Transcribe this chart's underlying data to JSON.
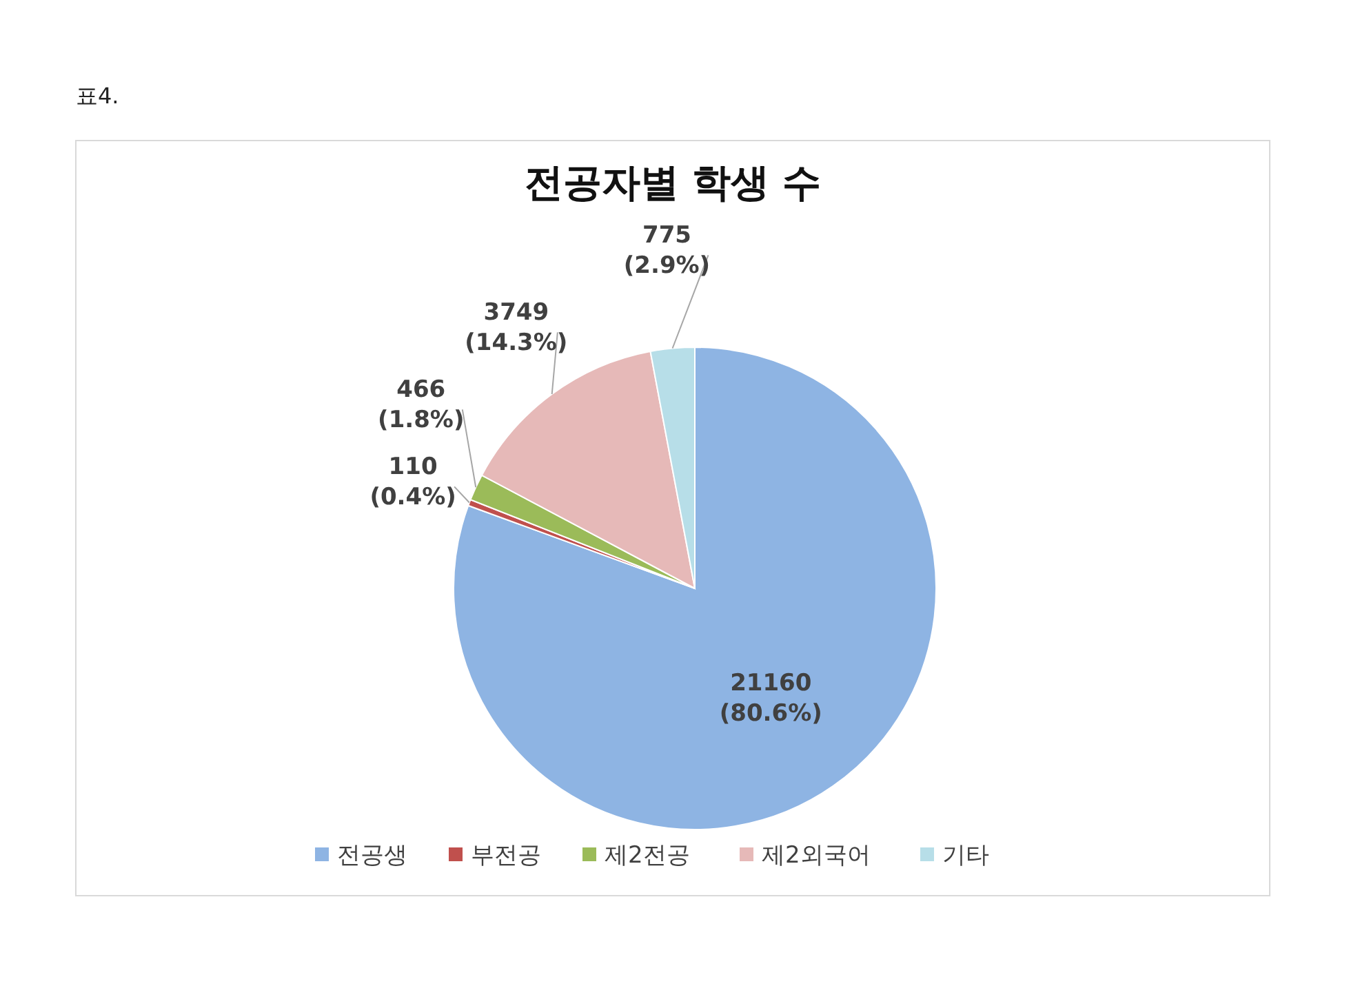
{
  "chart_data": {
    "type": "pie",
    "title": "전공자별 학생 수",
    "annotations": [
      "표4."
    ],
    "categories": [
      "전공생",
      "부전공",
      "제2전공",
      "제2외국어",
      "기타"
    ],
    "values": [
      21160,
      110,
      466,
      3749,
      775
    ],
    "value_labels": [
      "21160\n(80.6%)",
      "110\n(0.4%)",
      "466\n(1.8%)",
      "3749\n(14.3%)",
      "775\n(2.9%)"
    ],
    "colors": [
      "#8eb4e3",
      "#c0504d",
      "#9bbb59",
      "#e6b9b8",
      "#b7dee8"
    ],
    "legend": "bottom"
  }
}
